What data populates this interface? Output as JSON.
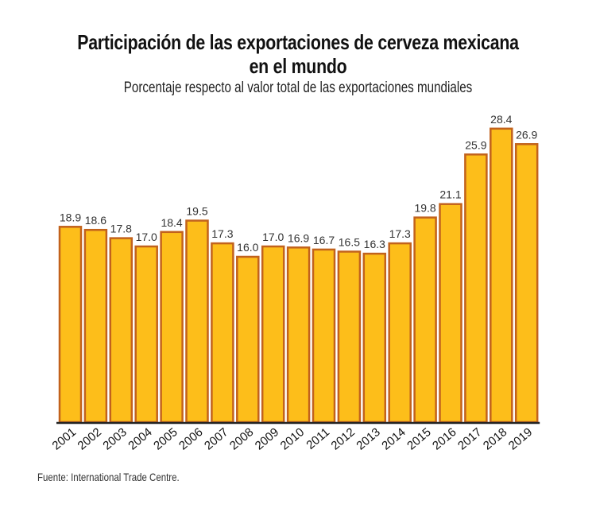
{
  "chart_data": {
    "type": "bar",
    "title_line1": "Participación de las exportaciones de cerveza mexicana",
    "title_line2": "en el mundo",
    "subtitle": "Porcentaje respecto al valor total de las exportaciones mundiales",
    "source": "Fuente: International Trade Centre.",
    "categories": [
      "2001",
      "2002",
      "2003",
      "2004",
      "2005",
      "2006",
      "2007",
      "2008",
      "2009",
      "2010",
      "2011",
      "2012",
      "2013",
      "2014",
      "2015",
      "2016",
      "2017",
      "2018",
      "2019"
    ],
    "values": [
      18.9,
      18.6,
      17.8,
      17.0,
      18.4,
      19.5,
      17.3,
      16.0,
      17.0,
      16.9,
      16.7,
      16.5,
      16.3,
      17.3,
      19.8,
      21.1,
      25.9,
      28.4,
      26.9
    ],
    "labels": [
      "18.9",
      "18.6",
      "17.8",
      "17.0",
      "18.4",
      "19.5",
      "17.3",
      "16.0",
      "17.0",
      "16.9",
      "16.7",
      "16.5",
      "16.3",
      "17.3",
      "19.8",
      "21.1",
      "25.9",
      "28.4",
      "26.9"
    ],
    "ylim": [
      0,
      30
    ],
    "grid": false,
    "colors": {
      "bar_fill": "#FDBE1A",
      "bar_stroke": "#C2621C",
      "axis": "#222222",
      "label": "#333333"
    }
  }
}
